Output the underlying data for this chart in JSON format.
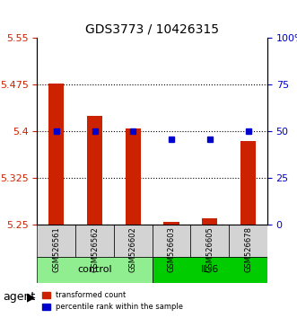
{
  "title": "GDS3773 / 10426315",
  "samples": [
    "GSM526561",
    "GSM526562",
    "GSM526602",
    "GSM526603",
    "GSM526605",
    "GSM526678"
  ],
  "red_values": [
    5.477,
    5.425,
    5.405,
    5.255,
    5.26,
    5.385
  ],
  "blue_values": [
    50,
    50,
    50,
    46,
    46,
    50
  ],
  "y_min": 5.25,
  "y_max": 5.55,
  "y_ticks": [
    5.25,
    5.325,
    5.4,
    5.475,
    5.55
  ],
  "y_tick_labels": [
    "5.25",
    "5.325",
    "5.4",
    "5.475",
    "5.55"
  ],
  "y2_ticks": [
    0,
    25,
    50,
    75,
    100
  ],
  "y2_tick_labels": [
    "0",
    "25",
    "50",
    "75",
    "100%"
  ],
  "groups": [
    {
      "label": "control",
      "indices": [
        0,
        1,
        2
      ],
      "color": "#90EE90"
    },
    {
      "label": "IL-6",
      "indices": [
        3,
        4,
        5
      ],
      "color": "#00CC00"
    }
  ],
  "bar_color": "#CC2200",
  "dot_color": "#0000CC",
  "bar_width": 0.4,
  "baseline": 5.25,
  "agent_label": "agent",
  "legend_items": [
    {
      "label": "transformed count",
      "color": "#CC2200"
    },
    {
      "label": "percentile rank within the sample",
      "color": "#0000CC"
    }
  ]
}
